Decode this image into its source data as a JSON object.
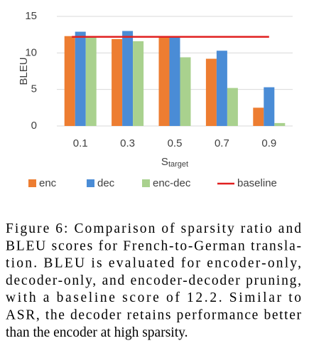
{
  "chart_data": {
    "type": "bar",
    "ylabel": "BLEU",
    "xlabel_parts": [
      "S",
      "target"
    ],
    "categories": [
      "0.1",
      "0.3",
      "0.5",
      "0.7",
      "0.9"
    ],
    "series": [
      {
        "name": "enc",
        "color": "#ed7d31",
        "values": [
          12.3,
          11.9,
          12.2,
          9.2,
          2.5
        ]
      },
      {
        "name": "dec",
        "color": "#4a8cd6",
        "values": [
          12.9,
          13.0,
          12.2,
          10.3,
          5.3
        ]
      },
      {
        "name": "enc-dec",
        "color": "#a9d18e",
        "values": [
          12.1,
          11.6,
          9.4,
          5.2,
          0.4
        ]
      }
    ],
    "baseline": {
      "name": "baseline",
      "color": "#e02020",
      "value": 12.2
    },
    "ylim": [
      0,
      15
    ],
    "yticks": [
      0,
      5,
      10,
      15
    ],
    "grid": true
  },
  "caption_lines": [
    "Figure 6: Comparison of sparsity ratio and",
    "BLEU scores for French-to-German transla-",
    "tion.  BLEU is evaluated for encoder-only,",
    "decoder-only, and encoder-decoder pruning,",
    "with a baseline score of 12.2.  Similar to",
    "ASR, the decoder retains performance better",
    "than the encoder at high sparsity."
  ]
}
